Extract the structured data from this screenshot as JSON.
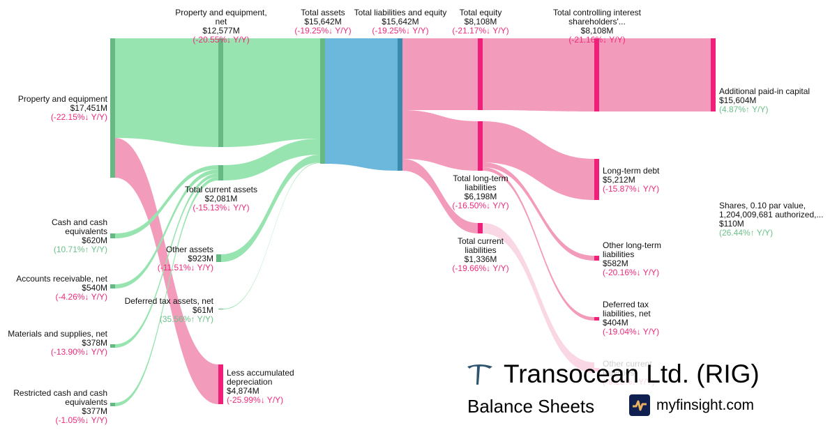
{
  "title": "Transocean Ltd. (RIG)",
  "subtitle": "Balance Sheets",
  "site": "myfinsight.com",
  "colors": {
    "asset_link": "#98e4b0",
    "asset_node": "#66b983",
    "total_link": "#6bb8dc",
    "total_node": "#3a8ab0",
    "liab_link": "#f39bbb",
    "liab_node": "#f0207a",
    "negative": "#ee2a7b",
    "positive": "#6cc08b"
  },
  "nodes": [
    {
      "id": "ppe",
      "name": "Property and equipment",
      "value": "$17,451M",
      "change": "(-22.15%↓ Y/Y)",
      "trend": "down"
    },
    {
      "id": "cash",
      "name": "Cash and cash equivalents",
      "value": "$620M",
      "change": "(10.71%↑ Y/Y)",
      "trend": "up"
    },
    {
      "id": "ar",
      "name": "Accounts receivable, net",
      "value": "$540M",
      "change": "(-4.26%↓ Y/Y)",
      "trend": "down"
    },
    {
      "id": "mat",
      "name": "Materials and supplies, net",
      "value": "$378M",
      "change": "(-13.90%↓ Y/Y)",
      "trend": "down"
    },
    {
      "id": "rcash",
      "name": "Restricted cash and cash equivalents",
      "value": "$377M",
      "change": "(-1.05%↓ Y/Y)",
      "trend": "down"
    },
    {
      "id": "ppenet",
      "name": "Property and equipment, net",
      "value": "$12,577M",
      "change": "(-20.55%↓ Y/Y)",
      "trend": "down"
    },
    {
      "id": "tca",
      "name": "Total current assets",
      "value": "$2,081M",
      "change": "(-15.13%↓ Y/Y)",
      "trend": "down"
    },
    {
      "id": "oa",
      "name": "Other assets",
      "value": "$923M",
      "change": "(-11.51%↓ Y/Y)",
      "trend": "down"
    },
    {
      "id": "dta",
      "name": "Deferred tax assets, net",
      "value": "$61M",
      "change": "(35.56%↑ Y/Y)",
      "trend": "up"
    },
    {
      "id": "lad",
      "name": "Less accumulated depreciation",
      "value": "$4,874M",
      "change": "(-25.99%↓ Y/Y)",
      "trend": "down"
    },
    {
      "id": "ta",
      "name": "Total assets",
      "value": "$15,642M",
      "change": "(-19.25%↓ Y/Y)",
      "trend": "down"
    },
    {
      "id": "tle",
      "name": "Total liabilities and equity",
      "value": "$15,642M",
      "change": "(-19.25%↓ Y/Y)",
      "trend": "down"
    },
    {
      "id": "te",
      "name": "Total equity",
      "value": "$8,108M",
      "change": "(-21.17%↓ Y/Y)",
      "trend": "down"
    },
    {
      "id": "tltl",
      "name": "Total long-term liabilities",
      "value": "$6,198M",
      "change": "(-16.50%↓ Y/Y)",
      "trend": "down"
    },
    {
      "id": "tcl",
      "name": "Total current liabilities",
      "value": "$1,336M",
      "change": "(-19.66%↓ Y/Y)",
      "trend": "down"
    },
    {
      "id": "tcis",
      "name": "Total controlling interest shareholders'...",
      "value": "$8,108M",
      "change": "(-21.16%↓ Y/Y)",
      "trend": "down"
    },
    {
      "id": "apic",
      "name": "Additional paid-in capital",
      "value": "$15,604M",
      "change": "(4.87%↑ Y/Y)",
      "trend": "up"
    },
    {
      "id": "ltd",
      "name": "Long-term debt",
      "value": "$5,212M",
      "change": "(-15.87%↓ Y/Y)",
      "trend": "down"
    },
    {
      "id": "oltl",
      "name": "Other long-term liabilities",
      "value": "$582M",
      "change": "(-20.16%↓ Y/Y)",
      "trend": "down"
    },
    {
      "id": "dtl",
      "name": "Deferred tax liabilities, net",
      "value": "$404M",
      "change": "(-19.04%↓ Y/Y)",
      "trend": "down"
    },
    {
      "id": "ocl",
      "name": "Other current liabilities",
      "value": "",
      "change": "(-9.26%↓ Y/Y)",
      "trend": "down"
    },
    {
      "id": "shares",
      "name": "Shares, 0.10 par value, 1,204,009,681 authorized,...",
      "value": "$110M",
      "change": "(26.44%↑ Y/Y)",
      "trend": "up"
    }
  ]
}
